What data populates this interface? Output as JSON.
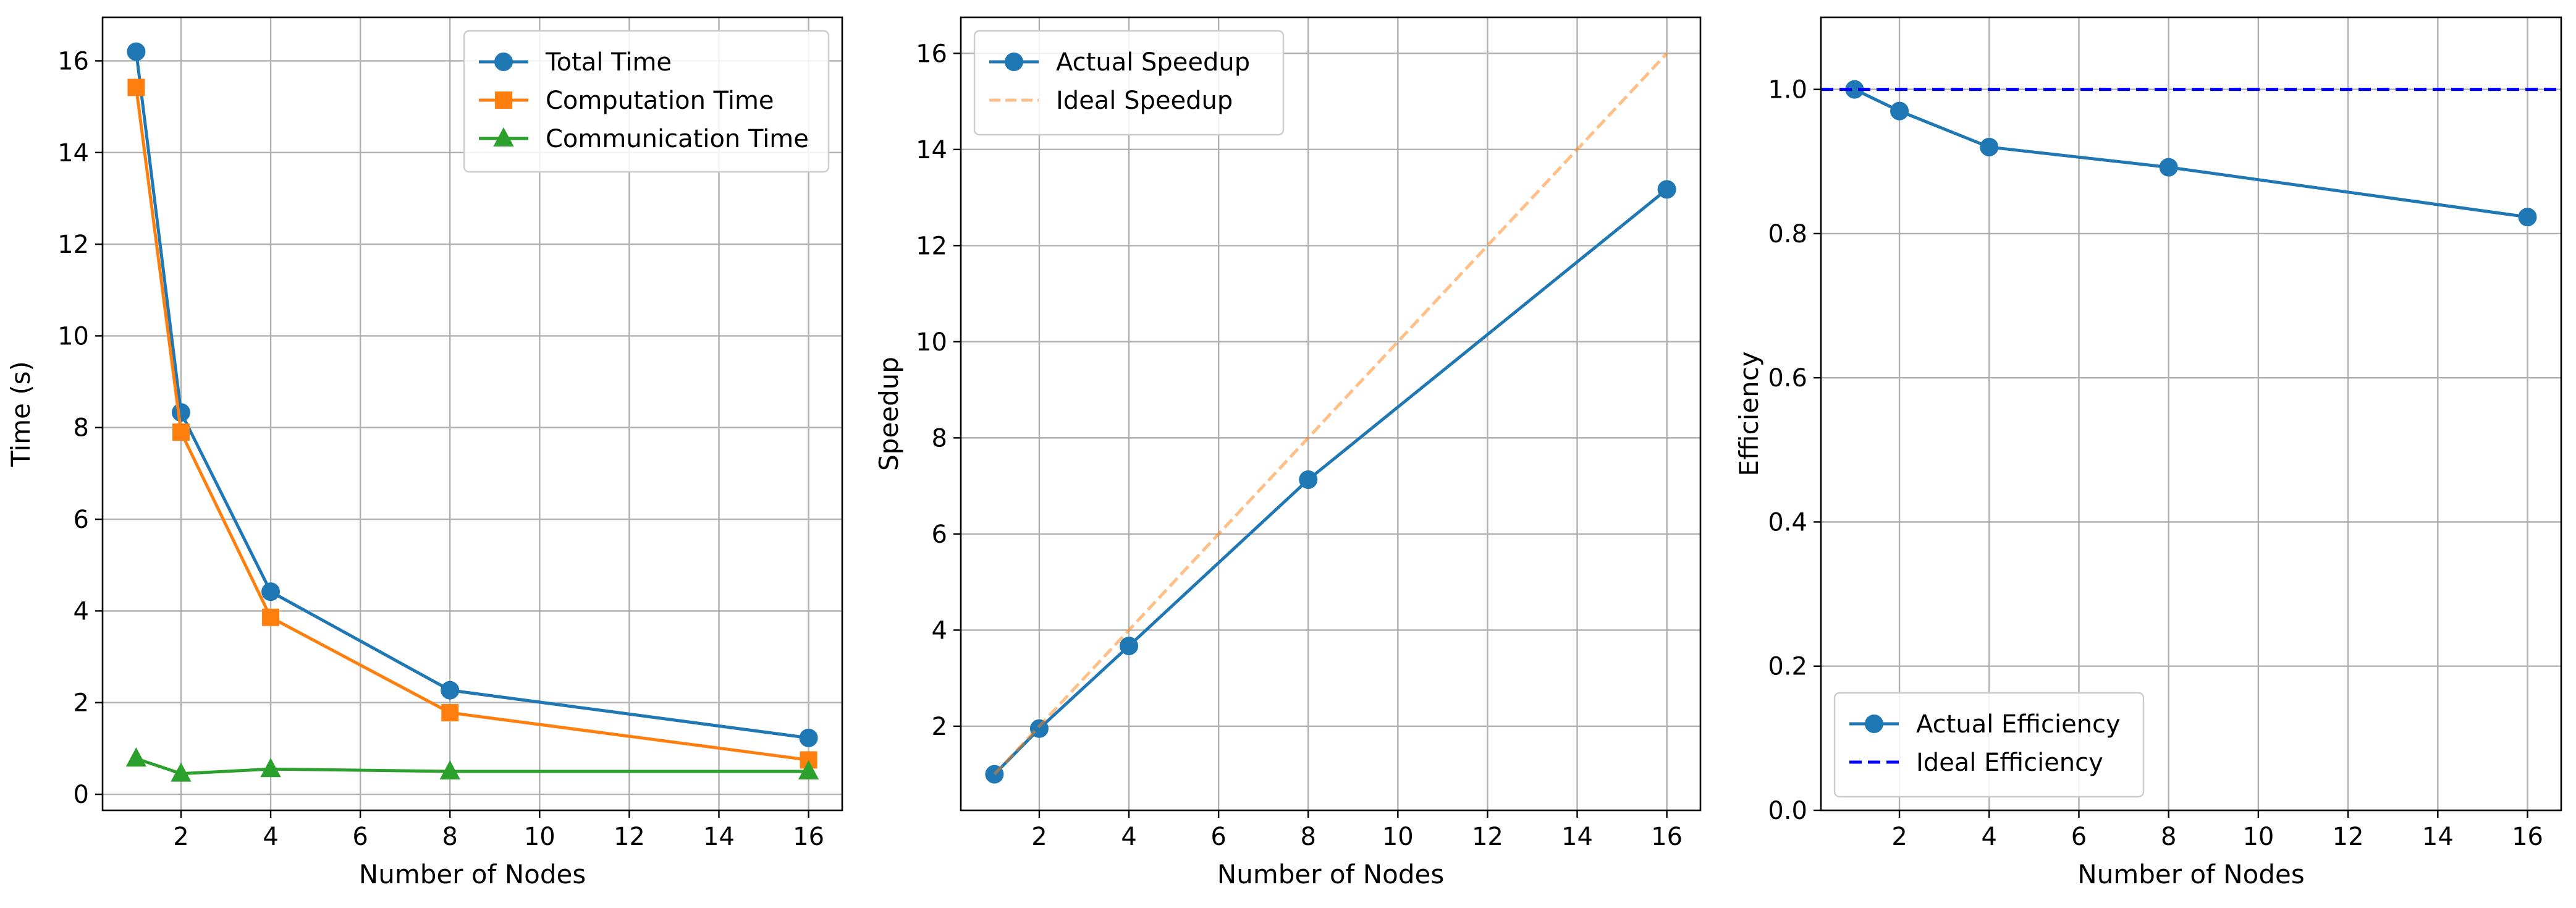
{
  "chart_data": [
    {
      "type": "line",
      "xlabel": "Number of Nodes",
      "ylabel": "Time (s)",
      "xlim": [
        0.25,
        16.75
      ],
      "ylim": [
        -0.35,
        16.95
      ],
      "xticks": [
        2,
        4,
        6,
        8,
        10,
        12,
        14,
        16
      ],
      "yticks": [
        0,
        2,
        4,
        6,
        8,
        10,
        12,
        14,
        16
      ],
      "x": [
        1,
        2,
        4,
        8,
        16
      ],
      "grid": true,
      "legend_position": "top-right",
      "series": [
        {
          "name": "Total Time",
          "values": [
            16.2,
            8.33,
            4.42,
            2.27,
            1.23
          ],
          "color": "#1f77b4",
          "marker": "circle",
          "linestyle": "solid"
        },
        {
          "name": "Computation Time",
          "values": [
            15.42,
            7.9,
            3.86,
            1.78,
            0.75
          ],
          "color": "#ff7f0e",
          "marker": "square",
          "linestyle": "solid"
        },
        {
          "name": "Communication Time",
          "values": [
            0.78,
            0.45,
            0.55,
            0.5,
            0.5
          ],
          "color": "#2ca02c",
          "marker": "triangle",
          "linestyle": "solid"
        }
      ]
    },
    {
      "type": "line",
      "xlabel": "Number of Nodes",
      "ylabel": "Speedup",
      "xlim": [
        0.25,
        16.75
      ],
      "ylim": [
        0.25,
        16.75
      ],
      "xticks": [
        2,
        4,
        6,
        8,
        10,
        12,
        14,
        16
      ],
      "yticks": [
        2,
        4,
        6,
        8,
        10,
        12,
        14,
        16
      ],
      "x": [
        1,
        2,
        4,
        8,
        16
      ],
      "grid": true,
      "legend_position": "top-left",
      "series": [
        {
          "name": "Actual Speedup",
          "values": [
            1.0,
            1.95,
            3.67,
            7.13,
            13.17
          ],
          "color": "#1f77b4",
          "marker": "circle",
          "linestyle": "solid"
        },
        {
          "name": "Ideal Speedup",
          "values": [
            1,
            2,
            4,
            8,
            16
          ],
          "color": "#ff7f0e",
          "marker": "none",
          "linestyle": "dashed",
          "opacity": 0.5
        }
      ]
    },
    {
      "type": "line",
      "xlabel": "Number of Nodes",
      "ylabel": "Efficiency",
      "xlim": [
        0.25,
        16.75
      ],
      "ylim": [
        0.0,
        1.1
      ],
      "xticks": [
        2,
        4,
        6,
        8,
        10,
        12,
        14,
        16
      ],
      "yticks": [
        0.0,
        0.2,
        0.4,
        0.6,
        0.8,
        1.0
      ],
      "ytick_labels": [
        "0.0",
        "0.2",
        "0.4",
        "0.6",
        "0.8",
        "1.0"
      ],
      "x": [
        1,
        2,
        4,
        8,
        16
      ],
      "grid": true,
      "legend_position": "bottom-left",
      "series": [
        {
          "name": "Actual Efficiency",
          "values": [
            1.0,
            0.97,
            0.92,
            0.892,
            0.823
          ],
          "color": "#1f77b4",
          "marker": "circle",
          "linestyle": "solid"
        },
        {
          "name": "Ideal Efficiency",
          "hline": 1.0,
          "color": "#0000ff",
          "marker": "none",
          "linestyle": "dashed"
        }
      ]
    }
  ]
}
